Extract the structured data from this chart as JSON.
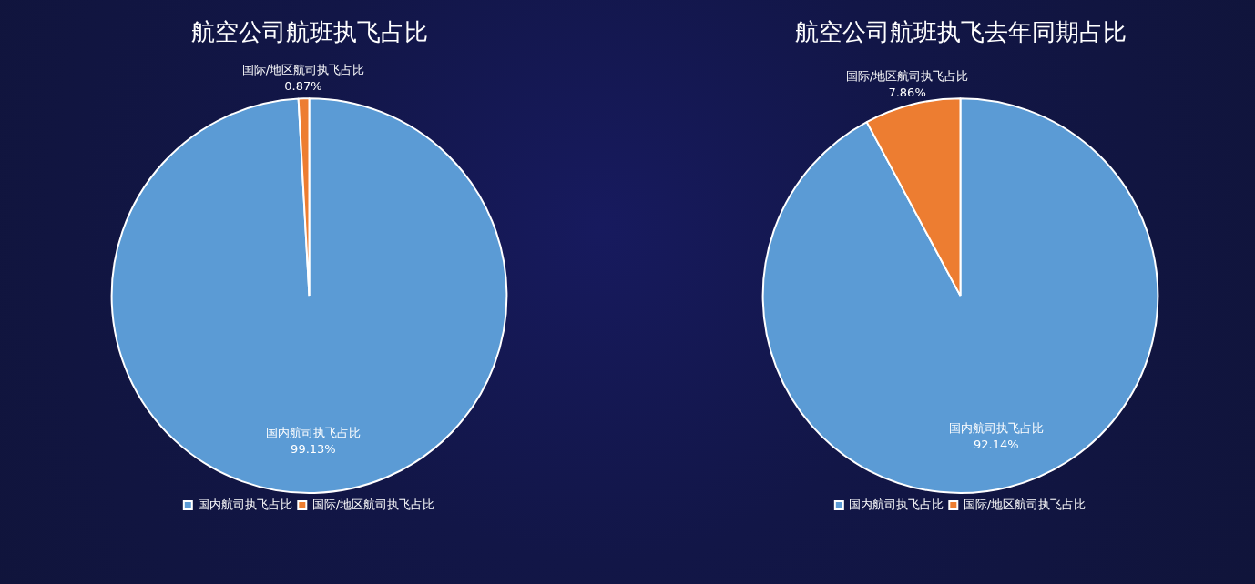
{
  "chart_data": [
    {
      "type": "pie",
      "title": "航空公司航班执飞占比",
      "categories": [
        "国内航司执飞占比",
        "国际/地区航司执飞占比"
      ],
      "values": [
        99.13,
        0.87
      ],
      "value_labels": [
        "99.13%",
        "0.87%"
      ],
      "colors": [
        "#5b9bd5",
        "#ed7d31"
      ],
      "legend": "bottom"
    },
    {
      "type": "pie",
      "title": "航空公司航班执飞去年同期占比",
      "categories": [
        "国内航司执飞占比",
        "国际/地区航司执飞占比"
      ],
      "values": [
        92.14,
        7.86
      ],
      "value_labels": [
        "92.14%",
        "7.86%"
      ],
      "colors": [
        "#5b9bd5",
        "#ed7d31"
      ],
      "legend": "bottom"
    }
  ]
}
